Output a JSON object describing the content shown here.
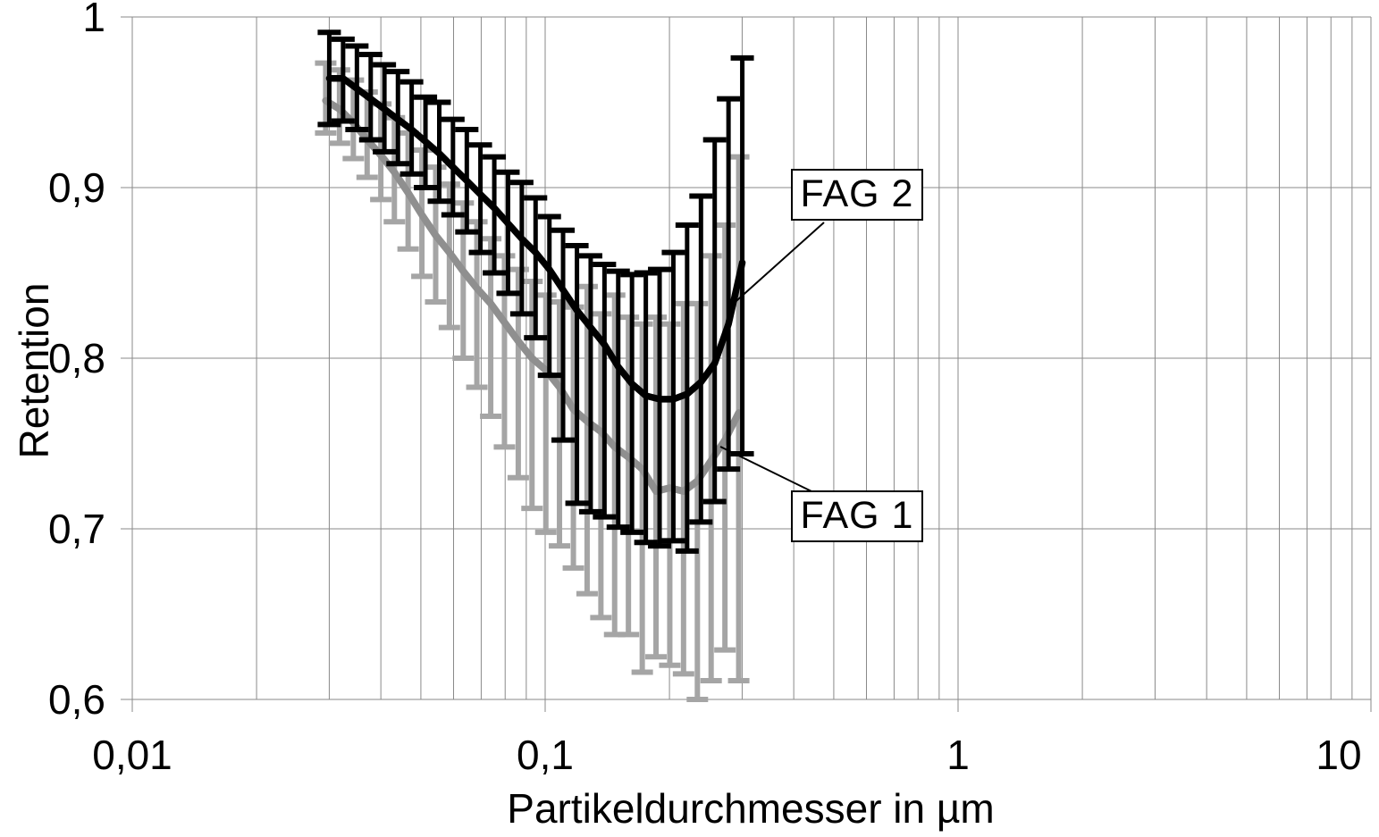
{
  "axes": {
    "x": {
      "label": "Partikeldurchmesser in µm",
      "scale": "log",
      "min": 0.01,
      "max": 10,
      "ticks": [
        "0,01",
        "0,1",
        "1",
        "10"
      ],
      "tick_values": [
        0.01,
        0.1,
        1,
        10
      ]
    },
    "y": {
      "label": "Retention",
      "scale": "linear",
      "min": 0.6,
      "max": 1.0,
      "ticks": [
        "1",
        "0,9",
        "0,8",
        "0,7",
        "0,6"
      ],
      "tick_values": [
        1.0,
        0.9,
        0.8,
        0.7,
        0.6
      ]
    }
  },
  "legend": [
    {
      "label": "FAG 2"
    },
    {
      "label": "FAG 1"
    }
  ],
  "chart_data": {
    "type": "line",
    "title": "",
    "xlabel": "Partikeldurchmesser in µm",
    "ylabel": "Retention",
    "xscale": "log",
    "xlim": [
      0.01,
      10
    ],
    "ylim": [
      0.6,
      1.0
    ],
    "grid": "y-major + x-log-minor",
    "x": [
      0.03,
      0.0324,
      0.035,
      0.0378,
      0.0408,
      0.044,
      0.0475,
      0.0513,
      0.0554,
      0.0598,
      0.0646,
      0.0697,
      0.0753,
      0.0813,
      0.0878,
      0.0948,
      0.1024,
      0.1105,
      0.1194,
      0.1289,
      0.1392,
      0.1503,
      0.1623,
      0.1753,
      0.1893,
      0.2044,
      0.2207,
      0.2384,
      0.2574,
      0.278,
      0.3002
    ],
    "series": [
      {
        "name": "FAG 1",
        "color": "#8f8f8f",
        "bar_color": "#a5a5a5",
        "values": [
          0.951,
          0.946,
          0.938,
          0.928,
          0.919,
          0.909,
          0.897,
          0.884,
          0.872,
          0.862,
          0.851,
          0.841,
          0.832,
          0.821,
          0.81,
          0.8,
          0.793,
          0.783,
          0.77,
          0.763,
          0.757,
          0.748,
          0.742,
          0.735,
          0.722,
          0.724,
          0.722,
          0.728,
          0.74,
          0.752,
          0.768
        ],
        "err_top": [
          0.973,
          0.969,
          0.963,
          0.956,
          0.949,
          0.941,
          0.932,
          0.922,
          0.912,
          0.902,
          0.891,
          0.88,
          0.87,
          0.86,
          0.852,
          0.845,
          0.837,
          0.833,
          0.83,
          0.842,
          0.826,
          0.837,
          0.824,
          0.82,
          0.824,
          0.82,
          0.832,
          0.832,
          0.86,
          0.878,
          0.918
        ],
        "err_bottom": [
          0.932,
          0.926,
          0.917,
          0.906,
          0.893,
          0.88,
          0.864,
          0.848,
          0.833,
          0.818,
          0.8,
          0.783,
          0.766,
          0.748,
          0.73,
          0.712,
          0.698,
          0.69,
          0.677,
          0.662,
          0.648,
          0.638,
          0.638,
          0.616,
          0.625,
          0.62,
          0.615,
          0.6,
          0.611,
          0.629,
          0.611
        ]
      },
      {
        "name": "FAG 2",
        "color": "#000000",
        "bar_color": "#000000",
        "values": [
          0.964,
          0.964,
          0.958,
          0.952,
          0.946,
          0.94,
          0.934,
          0.927,
          0.92,
          0.912,
          0.904,
          0.896,
          0.888,
          0.879,
          0.87,
          0.862,
          0.852,
          0.84,
          0.828,
          0.818,
          0.808,
          0.795,
          0.785,
          0.778,
          0.776,
          0.776,
          0.779,
          0.786,
          0.797,
          0.82,
          0.856
        ],
        "err_top": [
          0.991,
          0.987,
          0.983,
          0.978,
          0.972,
          0.968,
          0.962,
          0.953,
          0.95,
          0.94,
          0.934,
          0.925,
          0.918,
          0.909,
          0.903,
          0.894,
          0.883,
          0.875,
          0.866,
          0.86,
          0.855,
          0.851,
          0.849,
          0.85,
          0.852,
          0.862,
          0.878,
          0.895,
          0.928,
          0.952,
          0.976
        ],
        "err_bottom": [
          0.937,
          0.939,
          0.934,
          0.928,
          0.921,
          0.914,
          0.908,
          0.9,
          0.892,
          0.884,
          0.874,
          0.862,
          0.85,
          0.838,
          0.826,
          0.812,
          0.79,
          0.752,
          0.715,
          0.71,
          0.707,
          0.701,
          0.698,
          0.692,
          0.69,
          0.693,
          0.687,
          0.704,
          0.716,
          0.735,
          0.744
        ]
      }
    ]
  }
}
